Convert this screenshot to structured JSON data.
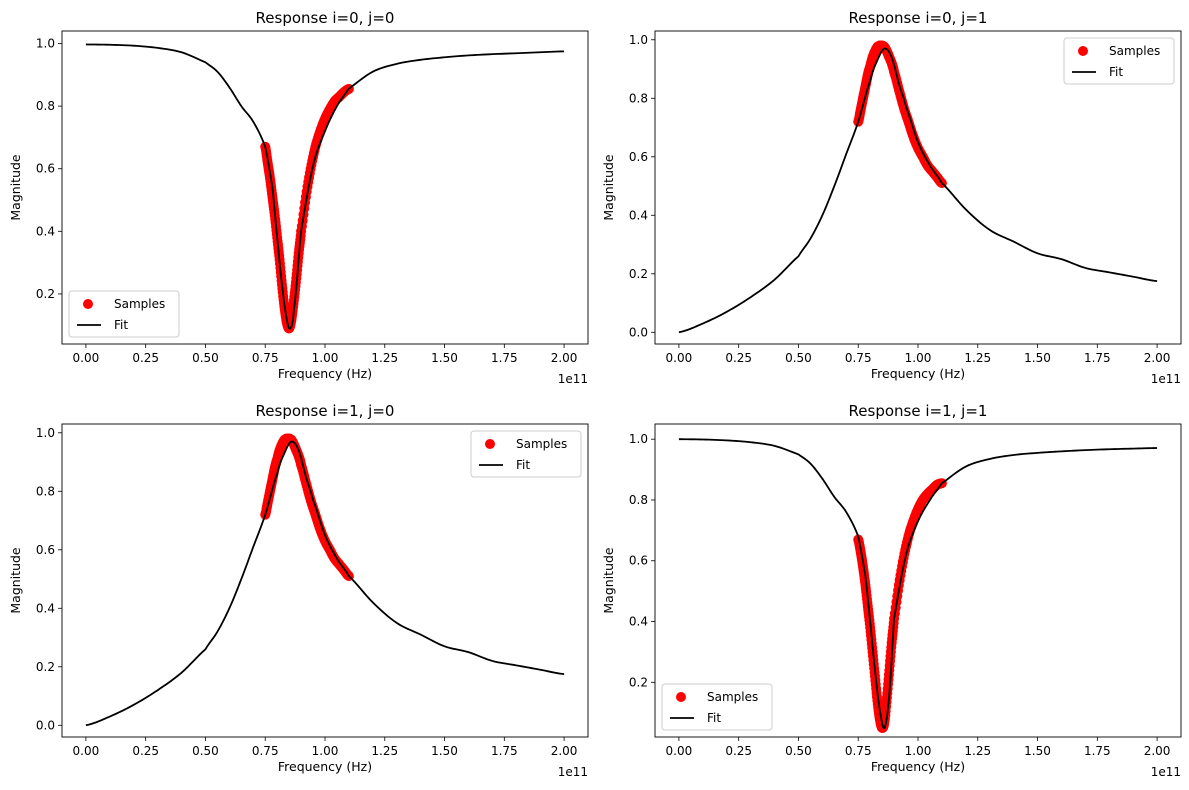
{
  "chart_data": [
    {
      "type": "line",
      "title": "Response i=0, j=0",
      "xlabel": "Frequency (Hz)",
      "ylabel": "Magnitude",
      "x_offset_text": "1e11",
      "xlim": [
        -0.1,
        2.1
      ],
      "ylim": [
        0.04,
        1.04
      ],
      "xticks": [
        0.0,
        0.25,
        0.5,
        0.75,
        1.0,
        1.25,
        1.5,
        1.75,
        2.0
      ],
      "xtick_labels": [
        "0.00",
        "0.25",
        "0.50",
        "0.75",
        "1.00",
        "1.25",
        "1.50",
        "1.75",
        "2.00"
      ],
      "yticks": [
        0.2,
        0.4,
        0.6,
        0.8,
        1.0
      ],
      "ytick_labels": [
        "0.2",
        "0.4",
        "0.6",
        "0.8",
        "1.0"
      ],
      "legend_position": "lower-left",
      "series": [
        {
          "name": "Samples",
          "kind": "scatter",
          "color": "#ff0000",
          "x": [
            0.75,
            0.76,
            0.77,
            0.78,
            0.79,
            0.8,
            0.81,
            0.82,
            0.83,
            0.84,
            0.85,
            0.86,
            0.87,
            0.88,
            0.89,
            0.9,
            0.92,
            0.94,
            0.96,
            0.98,
            1.0,
            1.02,
            1.04,
            1.06,
            1.08,
            1.1
          ],
          "y": [
            0.67,
            0.62,
            0.57,
            0.51,
            0.45,
            0.38,
            0.31,
            0.23,
            0.16,
            0.11,
            0.09,
            0.12,
            0.18,
            0.25,
            0.33,
            0.4,
            0.51,
            0.6,
            0.67,
            0.72,
            0.76,
            0.79,
            0.815,
            0.83,
            0.845,
            0.855
          ]
        },
        {
          "name": "Fit",
          "kind": "line",
          "color": "#000000",
          "x": [
            0.0,
            0.1,
            0.2,
            0.3,
            0.4,
            0.5,
            0.55,
            0.6,
            0.65,
            0.7,
            0.75,
            0.78,
            0.8,
            0.82,
            0.84,
            0.855,
            0.87,
            0.9,
            0.95,
            1.0,
            1.05,
            1.1,
            1.2,
            1.3,
            1.4,
            1.5,
            1.6,
            1.7,
            1.8,
            1.9,
            2.0
          ],
          "y": [
            0.997,
            0.996,
            0.993,
            0.986,
            0.972,
            0.94,
            0.91,
            0.86,
            0.8,
            0.75,
            0.67,
            0.54,
            0.38,
            0.23,
            0.12,
            0.09,
            0.15,
            0.4,
            0.61,
            0.72,
            0.8,
            0.856,
            0.91,
            0.935,
            0.948,
            0.956,
            0.962,
            0.966,
            0.969,
            0.972,
            0.975
          ]
        }
      ]
    },
    {
      "type": "line",
      "title": "Response i=0, j=1",
      "xlabel": "Frequency (Hz)",
      "ylabel": "Magnitude",
      "x_offset_text": "1e11",
      "xlim": [
        -0.1,
        2.1
      ],
      "ylim": [
        -0.04,
        1.03
      ],
      "xticks": [
        0.0,
        0.25,
        0.5,
        0.75,
        1.0,
        1.25,
        1.5,
        1.75,
        2.0
      ],
      "xtick_labels": [
        "0.00",
        "0.25",
        "0.50",
        "0.75",
        "1.00",
        "1.25",
        "1.50",
        "1.75",
        "2.00"
      ],
      "yticks": [
        0.0,
        0.2,
        0.4,
        0.6,
        0.8,
        1.0
      ],
      "ytick_labels": [
        "0.0",
        "0.2",
        "0.4",
        "0.6",
        "0.8",
        "1.0"
      ],
      "legend_position": "upper-right",
      "series": [
        {
          "name": "Samples",
          "kind": "scatter",
          "color": "#ff0000",
          "x": [
            0.75,
            0.76,
            0.77,
            0.78,
            0.79,
            0.8,
            0.81,
            0.82,
            0.83,
            0.84,
            0.85,
            0.86,
            0.87,
            0.88,
            0.89,
            0.9,
            0.92,
            0.94,
            0.96,
            0.98,
            1.0,
            1.02,
            1.04,
            1.06,
            1.08,
            1.1
          ],
          "y": [
            0.72,
            0.76,
            0.8,
            0.84,
            0.88,
            0.91,
            0.94,
            0.96,
            0.975,
            0.98,
            0.98,
            0.975,
            0.96,
            0.94,
            0.92,
            0.89,
            0.83,
            0.77,
            0.72,
            0.67,
            0.63,
            0.6,
            0.57,
            0.55,
            0.53,
            0.51
          ]
        },
        {
          "name": "Fit",
          "kind": "line",
          "color": "#000000",
          "x": [
            0.0,
            0.1,
            0.2,
            0.3,
            0.4,
            0.5,
            0.55,
            0.6,
            0.65,
            0.7,
            0.75,
            0.8,
            0.83,
            0.86,
            0.89,
            0.92,
            0.95,
            1.0,
            1.05,
            1.1,
            1.2,
            1.3,
            1.4,
            1.5,
            1.6,
            1.7,
            1.8,
            1.9,
            2.0
          ],
          "y": [
            0.0,
            0.03,
            0.07,
            0.12,
            0.18,
            0.26,
            0.32,
            0.4,
            0.5,
            0.61,
            0.72,
            0.86,
            0.93,
            0.97,
            0.94,
            0.85,
            0.77,
            0.65,
            0.57,
            0.51,
            0.42,
            0.35,
            0.31,
            0.27,
            0.25,
            0.22,
            0.205,
            0.19,
            0.175
          ]
        }
      ]
    },
    {
      "type": "line",
      "title": "Response i=1, j=0",
      "xlabel": "Frequency (Hz)",
      "ylabel": "Magnitude",
      "x_offset_text": "1e11",
      "xlim": [
        -0.1,
        2.1
      ],
      "ylim": [
        -0.04,
        1.03
      ],
      "xticks": [
        0.0,
        0.25,
        0.5,
        0.75,
        1.0,
        1.25,
        1.5,
        1.75,
        2.0
      ],
      "xtick_labels": [
        "0.00",
        "0.25",
        "0.50",
        "0.75",
        "1.00",
        "1.25",
        "1.50",
        "1.75",
        "2.00"
      ],
      "yticks": [
        0.0,
        0.2,
        0.4,
        0.6,
        0.8,
        1.0
      ],
      "ytick_labels": [
        "0.0",
        "0.2",
        "0.4",
        "0.6",
        "0.8",
        "1.0"
      ],
      "legend_position": "upper-right",
      "series": [
        {
          "name": "Samples",
          "kind": "scatter",
          "color": "#ff0000",
          "x": [
            0.75,
            0.76,
            0.77,
            0.78,
            0.79,
            0.8,
            0.81,
            0.82,
            0.83,
            0.84,
            0.85,
            0.86,
            0.87,
            0.88,
            0.89,
            0.9,
            0.92,
            0.94,
            0.96,
            0.98,
            1.0,
            1.02,
            1.04,
            1.06,
            1.08,
            1.1
          ],
          "y": [
            0.72,
            0.76,
            0.8,
            0.84,
            0.88,
            0.91,
            0.94,
            0.96,
            0.975,
            0.98,
            0.98,
            0.975,
            0.96,
            0.94,
            0.92,
            0.89,
            0.83,
            0.77,
            0.72,
            0.67,
            0.63,
            0.6,
            0.57,
            0.55,
            0.53,
            0.51
          ]
        },
        {
          "name": "Fit",
          "kind": "line",
          "color": "#000000",
          "x": [
            0.0,
            0.1,
            0.2,
            0.3,
            0.4,
            0.5,
            0.55,
            0.6,
            0.65,
            0.7,
            0.75,
            0.8,
            0.83,
            0.86,
            0.89,
            0.92,
            0.95,
            1.0,
            1.05,
            1.1,
            1.2,
            1.3,
            1.4,
            1.5,
            1.6,
            1.7,
            1.8,
            1.9,
            2.0
          ],
          "y": [
            0.0,
            0.03,
            0.07,
            0.12,
            0.18,
            0.26,
            0.32,
            0.4,
            0.5,
            0.61,
            0.72,
            0.86,
            0.93,
            0.97,
            0.94,
            0.85,
            0.77,
            0.65,
            0.57,
            0.51,
            0.42,
            0.35,
            0.31,
            0.27,
            0.25,
            0.22,
            0.205,
            0.19,
            0.175
          ]
        }
      ]
    },
    {
      "type": "line",
      "title": "Response i=1, j=1",
      "xlabel": "Frequency (Hz)",
      "ylabel": "Magnitude",
      "x_offset_text": "1e11",
      "xlim": [
        -0.1,
        2.1
      ],
      "ylim": [
        0.02,
        1.05
      ],
      "xticks": [
        0.0,
        0.25,
        0.5,
        0.75,
        1.0,
        1.25,
        1.5,
        1.75,
        2.0
      ],
      "xtick_labels": [
        "0.00",
        "0.25",
        "0.50",
        "0.75",
        "1.00",
        "1.25",
        "1.50",
        "1.75",
        "2.00"
      ],
      "yticks": [
        0.2,
        0.4,
        0.6,
        0.8,
        1.0
      ],
      "ytick_labels": [
        "0.2",
        "0.4",
        "0.6",
        "0.8",
        "1.0"
      ],
      "legend_position": "lower-left",
      "series": [
        {
          "name": "Samples",
          "kind": "scatter",
          "color": "#ff0000",
          "x": [
            0.75,
            0.76,
            0.77,
            0.78,
            0.79,
            0.8,
            0.81,
            0.82,
            0.83,
            0.84,
            0.85,
            0.86,
            0.87,
            0.88,
            0.89,
            0.9,
            0.92,
            0.94,
            0.96,
            0.98,
            1.0,
            1.02,
            1.04,
            1.06,
            1.08,
            1.1
          ],
          "y": [
            0.67,
            0.63,
            0.58,
            0.52,
            0.45,
            0.38,
            0.3,
            0.22,
            0.14,
            0.08,
            0.05,
            0.07,
            0.15,
            0.24,
            0.33,
            0.41,
            0.52,
            0.61,
            0.68,
            0.73,
            0.77,
            0.8,
            0.82,
            0.835,
            0.85,
            0.855
          ]
        },
        {
          "name": "Fit",
          "kind": "line",
          "color": "#000000",
          "x": [
            0.0,
            0.1,
            0.2,
            0.3,
            0.4,
            0.5,
            0.55,
            0.6,
            0.65,
            0.7,
            0.75,
            0.78,
            0.8,
            0.82,
            0.84,
            0.86,
            0.88,
            0.9,
            0.95,
            1.0,
            1.05,
            1.1,
            1.2,
            1.3,
            1.4,
            1.5,
            1.6,
            1.7,
            1.8,
            1.9,
            2.0
          ],
          "y": [
            1.0,
            0.999,
            0.996,
            0.99,
            0.978,
            0.95,
            0.92,
            0.87,
            0.81,
            0.76,
            0.68,
            0.55,
            0.4,
            0.24,
            0.11,
            0.05,
            0.16,
            0.41,
            0.62,
            0.73,
            0.8,
            0.855,
            0.91,
            0.935,
            0.948,
            0.955,
            0.96,
            0.964,
            0.967,
            0.969,
            0.971
          ]
        }
      ]
    }
  ]
}
